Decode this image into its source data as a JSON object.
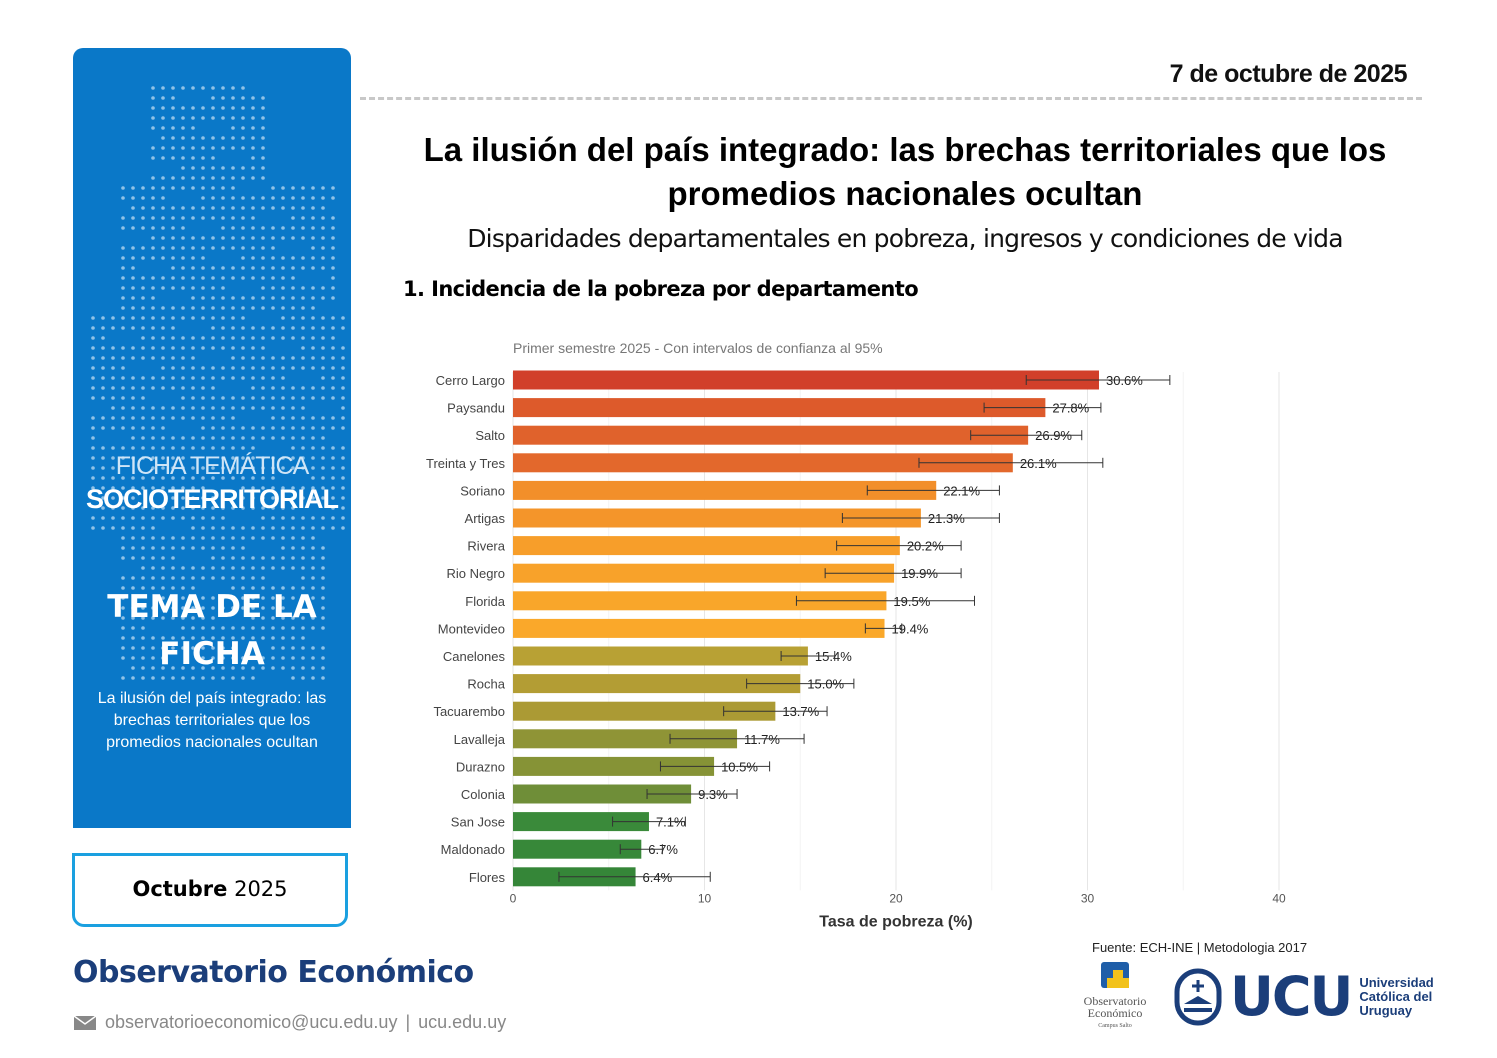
{
  "header": {
    "date": "7 de octubre de 2025",
    "title": "La ilusión del país integrado: las brechas territoriales que los promedios nacionales ocultan",
    "subtitle": "Disparidades departamentales en pobreza, ingresos y condiciones de vida",
    "section": "1.  Incidencia de la pobreza por departamento"
  },
  "sidebar": {
    "line1": "FICHA TEMÁTICA",
    "line2": "SOCIOTERRITORIAL",
    "theme_label": "TEMA DE LA FICHA",
    "description": "La ilusión del país integrado: las brechas territoriales que los promedios nacionales ocultan",
    "month": "Octubre",
    "year": "2025",
    "accent": "#0a78c8"
  },
  "footer": {
    "brand": "Observatorio Económico",
    "email": "observatorioeconomico@ucu.edu.uy",
    "separator": "|",
    "site": "ucu.edu.uy",
    "source": "Fuente: ECH-INE | Metodologia 2017",
    "logo_obs": "Observatorio Económico",
    "logo_obs_sub": "Campus Salto",
    "logo_ucu": "UCU",
    "logo_ucu_name": "Universidad Católica del Uruguay"
  },
  "chart_data": {
    "type": "bar",
    "orientation": "horizontal",
    "subtitle": "Primer semestre 2025 - Con intervalos de confianza al 95%",
    "xlabel": "Tasa de pobreza (%)",
    "xlim": [
      0,
      40
    ],
    "xticks": [
      0,
      10,
      20,
      30,
      40
    ],
    "grid": true,
    "categories": [
      "Cerro Largo",
      "Paysandu",
      "Salto",
      "Treinta y Tres",
      "Soriano",
      "Artigas",
      "Rivera",
      "Rio Negro",
      "Florida",
      "Montevideo",
      "Canelones",
      "Rocha",
      "Tacuarembo",
      "Lavalleja",
      "Durazno",
      "Colonia",
      "San Jose",
      "Maldonado",
      "Flores"
    ],
    "values": [
      30.6,
      27.8,
      26.9,
      26.1,
      22.1,
      21.3,
      20.2,
      19.9,
      19.5,
      19.4,
      15.4,
      15.0,
      13.7,
      11.7,
      10.5,
      9.3,
      7.1,
      6.7,
      6.4
    ],
    "labels": [
      "30.6%",
      "27.8%",
      "26.9%",
      "26.1%",
      "22.1%",
      "21.3%",
      "20.2%",
      "19.9%",
      "19.5%",
      "19.4%",
      "15.4%",
      "15.0%",
      "13.7%",
      "11.7%",
      "10.5%",
      "9.3%",
      "7.1%",
      "6.7%",
      "6.4%"
    ],
    "ci_low": [
      26.8,
      24.6,
      23.9,
      21.2,
      18.5,
      17.2,
      16.9,
      16.3,
      14.8,
      18.4,
      14.0,
      12.2,
      11.0,
      8.2,
      7.7,
      7.0,
      5.2,
      5.6,
      2.4
    ],
    "ci_high": [
      34.3,
      30.7,
      29.7,
      30.8,
      25.4,
      25.4,
      23.4,
      23.4,
      24.1,
      20.3,
      16.8,
      17.8,
      16.4,
      15.2,
      13.4,
      11.7,
      9.0,
      7.8,
      10.3
    ],
    "colors": [
      "#d13f2a",
      "#dd5a2b",
      "#e0622c",
      "#e3682c",
      "#f28f2a",
      "#f4952a",
      "#f79e2a",
      "#f8a22a",
      "#f9a62a",
      "#faa82a",
      "#b8a134",
      "#b39d34",
      "#ab9a34",
      "#8f9436",
      "#869336",
      "#6f8e38",
      "#3a8a3a",
      "#378839",
      "#358638"
    ]
  }
}
